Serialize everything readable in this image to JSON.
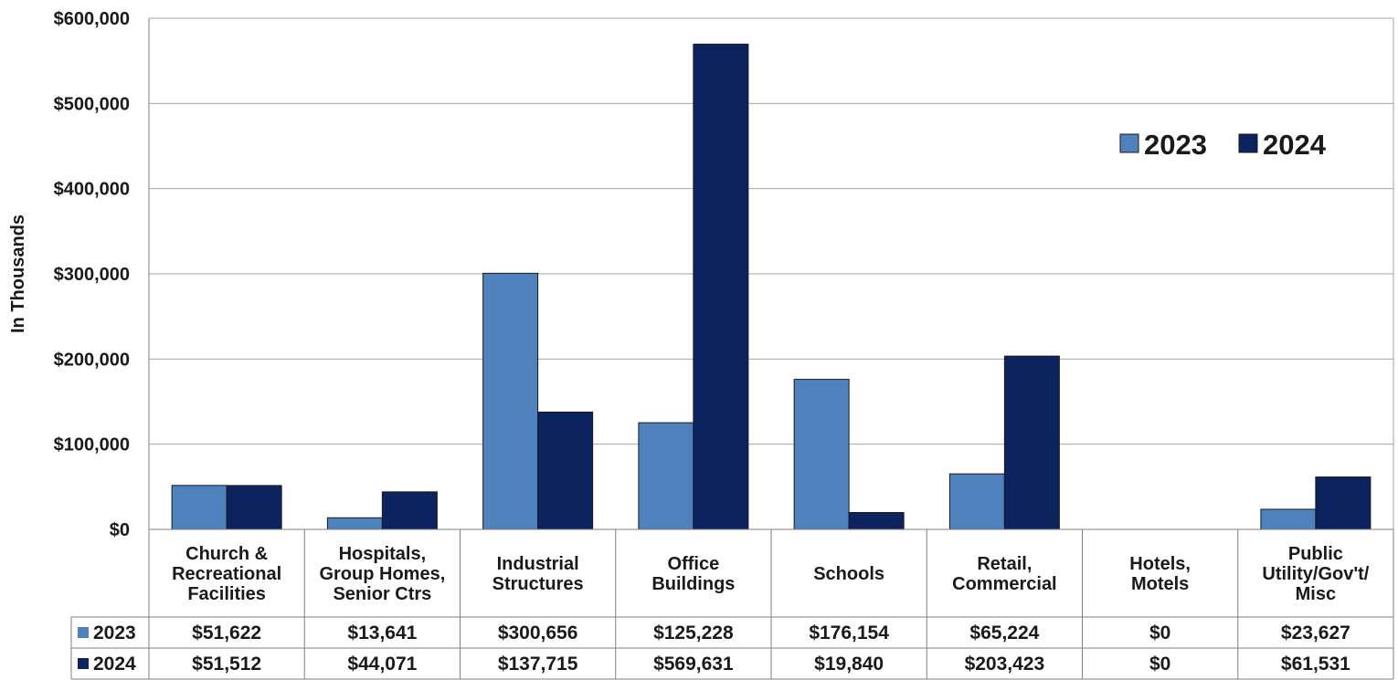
{
  "chart_data": {
    "type": "bar",
    "ylabel": "In Thousands",
    "ylim": [
      0,
      600000
    ],
    "y_ticks": [
      0,
      100000,
      200000,
      300000,
      400000,
      500000,
      600000
    ],
    "y_tick_labels": [
      "$0",
      "$100,000",
      "$200,000",
      "$300,000",
      "$400,000",
      "$500,000",
      "$600,000"
    ],
    "grid": true,
    "legend_position": "top-right",
    "categories": [
      [
        "Church &",
        "Recreational",
        "Facilities"
      ],
      [
        "Hospitals,",
        "Group Homes,",
        "Senior Ctrs"
      ],
      [
        "Industrial",
        "Structures"
      ],
      [
        "Office",
        "Buildings"
      ],
      [
        "Schools"
      ],
      [
        "Retail,",
        "Commercial"
      ],
      [
        "Hotels,",
        "Motels"
      ],
      [
        "Public",
        "Utility/Gov't/",
        "Misc"
      ]
    ],
    "series": [
      {
        "name": "2023",
        "color": "#4f81bd",
        "values": [
          51622,
          13641,
          300656,
          125228,
          176154,
          65224,
          0,
          23627
        ],
        "value_labels": [
          "$51,622",
          "$13,641",
          "$300,656",
          "$125,228",
          "$176,154",
          "$65,224",
          "$0",
          "$23,627"
        ]
      },
      {
        "name": "2024",
        "color": "#0c2360",
        "values": [
          51512,
          44071,
          137715,
          569631,
          19840,
          203423,
          0,
          61531
        ],
        "value_labels": [
          "$51,512",
          "$44,071",
          "$137,715",
          "$569,631",
          "$19,840",
          "$203,423",
          "$0",
          "$61,531"
        ]
      }
    ],
    "data_table": true
  }
}
